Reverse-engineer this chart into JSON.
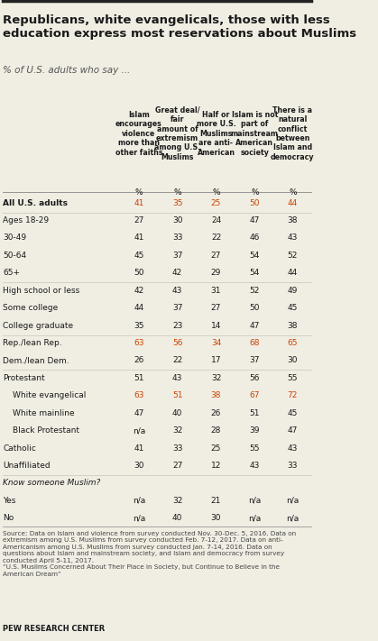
{
  "title": "Republicans, white evangelicals, those with less\neducation express most reservations about Muslims",
  "subtitle": "% of U.S. adults who say ...",
  "col_headers": [
    "Islam\nencourages\nviolence\nmore than\nother faiths",
    "Great deal/\nfair\namount of\nextremism\namong U.S.\nMuslims",
    "Half or\nmore U.S.\nMuslims\nare anti-\nAmerican",
    "Islam is not\npart of\nmainstream\nAmerican\nsociety",
    "There is a\nnatural\nconflict\nbetween\nIslam and\ndemocracy"
  ],
  "rows": [
    {
      "label": "All U.S. adults",
      "bold": true,
      "indent": 0,
      "values": [
        "41",
        "35",
        "25",
        "50",
        "44"
      ]
    },
    {
      "label": "Ages 18-29",
      "bold": false,
      "indent": 0,
      "values": [
        "27",
        "30",
        "24",
        "47",
        "38"
      ]
    },
    {
      "label": "30-49",
      "bold": false,
      "indent": 0,
      "values": [
        "41",
        "33",
        "22",
        "46",
        "43"
      ]
    },
    {
      "label": "50-64",
      "bold": false,
      "indent": 0,
      "values": [
        "45",
        "37",
        "27",
        "54",
        "52"
      ]
    },
    {
      "label": "65+",
      "bold": false,
      "indent": 0,
      "values": [
        "50",
        "42",
        "29",
        "54",
        "44"
      ]
    },
    {
      "label": "High school or less",
      "bold": false,
      "indent": 0,
      "values": [
        "42",
        "43",
        "31",
        "52",
        "49"
      ]
    },
    {
      "label": "Some college",
      "bold": false,
      "indent": 0,
      "values": [
        "44",
        "37",
        "27",
        "50",
        "45"
      ]
    },
    {
      "label": "College graduate",
      "bold": false,
      "indent": 0,
      "values": [
        "35",
        "23",
        "14",
        "47",
        "38"
      ]
    },
    {
      "label": "Rep./lean Rep.",
      "bold": false,
      "indent": 0,
      "values": [
        "63",
        "56",
        "34",
        "68",
        "65"
      ]
    },
    {
      "label": "Dem./lean Dem.",
      "bold": false,
      "indent": 0,
      "values": [
        "26",
        "22",
        "17",
        "37",
        "30"
      ]
    },
    {
      "label": "Protestant",
      "bold": false,
      "indent": 0,
      "values": [
        "51",
        "43",
        "32",
        "56",
        "55"
      ]
    },
    {
      "label": "White evangelical",
      "bold": false,
      "indent": 1,
      "values": [
        "63",
        "51",
        "38",
        "67",
        "72"
      ]
    },
    {
      "label": "White mainline",
      "bold": false,
      "indent": 1,
      "values": [
        "47",
        "40",
        "26",
        "51",
        "45"
      ]
    },
    {
      "label": "Black Protestant",
      "bold": false,
      "indent": 1,
      "values": [
        "n/a",
        "32",
        "28",
        "39",
        "47"
      ]
    },
    {
      "label": "Catholic",
      "bold": false,
      "indent": 0,
      "values": [
        "41",
        "33",
        "25",
        "55",
        "43"
      ]
    },
    {
      "label": "Unaffiliated",
      "bold": false,
      "indent": 0,
      "values": [
        "30",
        "27",
        "12",
        "43",
        "33"
      ]
    },
    {
      "label": "Know someone Muslim?",
      "bold": false,
      "indent": 0,
      "italic": true,
      "values": [
        "",
        "",
        "",
        "",
        ""
      ]
    },
    {
      "label": "Yes",
      "bold": false,
      "indent": 0,
      "values": [
        "n/a",
        "32",
        "21",
        "n/a",
        "n/a"
      ]
    },
    {
      "label": "No",
      "bold": false,
      "indent": 0,
      "values": [
        "n/a",
        "40",
        "30",
        "n/a",
        "n/a"
      ]
    }
  ],
  "source_text": "Source: Data on Islam and violence from survey conducted Nov. 30-Dec. 5, 2016. Data on\nextremism among U.S. Muslims from survey conducted Feb. 7-12, 2017. Data on anti-\nAmericanism among U.S. Muslims from survey conducted Jan. 7-14, 2016. Data on\nquestions about Islam and mainstream society, and Islam and democracy from survey\nconducted April 5-11, 2017.\n“U.S. Muslims Concerned About Their Place in Society, but Continue to Believe in the\nAmerican Dream”",
  "pew_label": "PEW RESEARCH CENTER",
  "highlight_rows": [
    0,
    8,
    11
  ],
  "separator_rows": [
    1,
    5,
    8,
    10,
    16
  ],
  "bg_color": "#f0ede3",
  "highlight_color": "#d4c9a8"
}
